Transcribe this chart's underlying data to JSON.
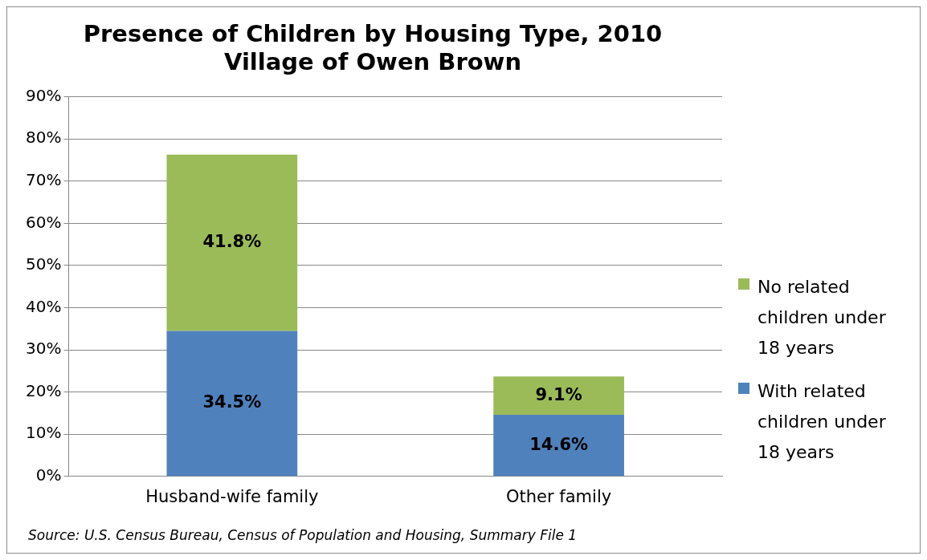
{
  "chart_data": {
    "type": "bar",
    "title": "Presence of Children by Housing Type, 2010\nVillage of Owen Brown",
    "categories": [
      "Husband-wife family",
      "Other family"
    ],
    "stacked": true,
    "series": [
      {
        "name": "With related children under 18 years",
        "color": "#4f81bd",
        "values": [
          34.5,
          14.6
        ],
        "value_labels": [
          "34.5%",
          "14.6%"
        ]
      },
      {
        "name": "No related children under 18 years",
        "color": "#9bbb59",
        "values": [
          41.8,
          9.1
        ],
        "value_labels": [
          "41.8%",
          "9.1%"
        ]
      }
    ],
    "ylim": [
      0,
      90
    ],
    "yticks": [
      {
        "value": 0,
        "label": "0%"
      },
      {
        "value": 10,
        "label": "10%"
      },
      {
        "value": 20,
        "label": "20%"
      },
      {
        "value": 30,
        "label": "30%"
      },
      {
        "value": 40,
        "label": "40%"
      },
      {
        "value": 50,
        "label": "50%"
      },
      {
        "value": 60,
        "label": "60%"
      },
      {
        "value": 70,
        "label": "70%"
      },
      {
        "value": 80,
        "label": "80%"
      },
      {
        "value": 90,
        "label": "90%"
      }
    ],
    "grid": "y",
    "legend": "right",
    "annotations": [
      "Source:  U.S. Census Bureau, Census of Population and Housing, Summary File 1"
    ]
  }
}
